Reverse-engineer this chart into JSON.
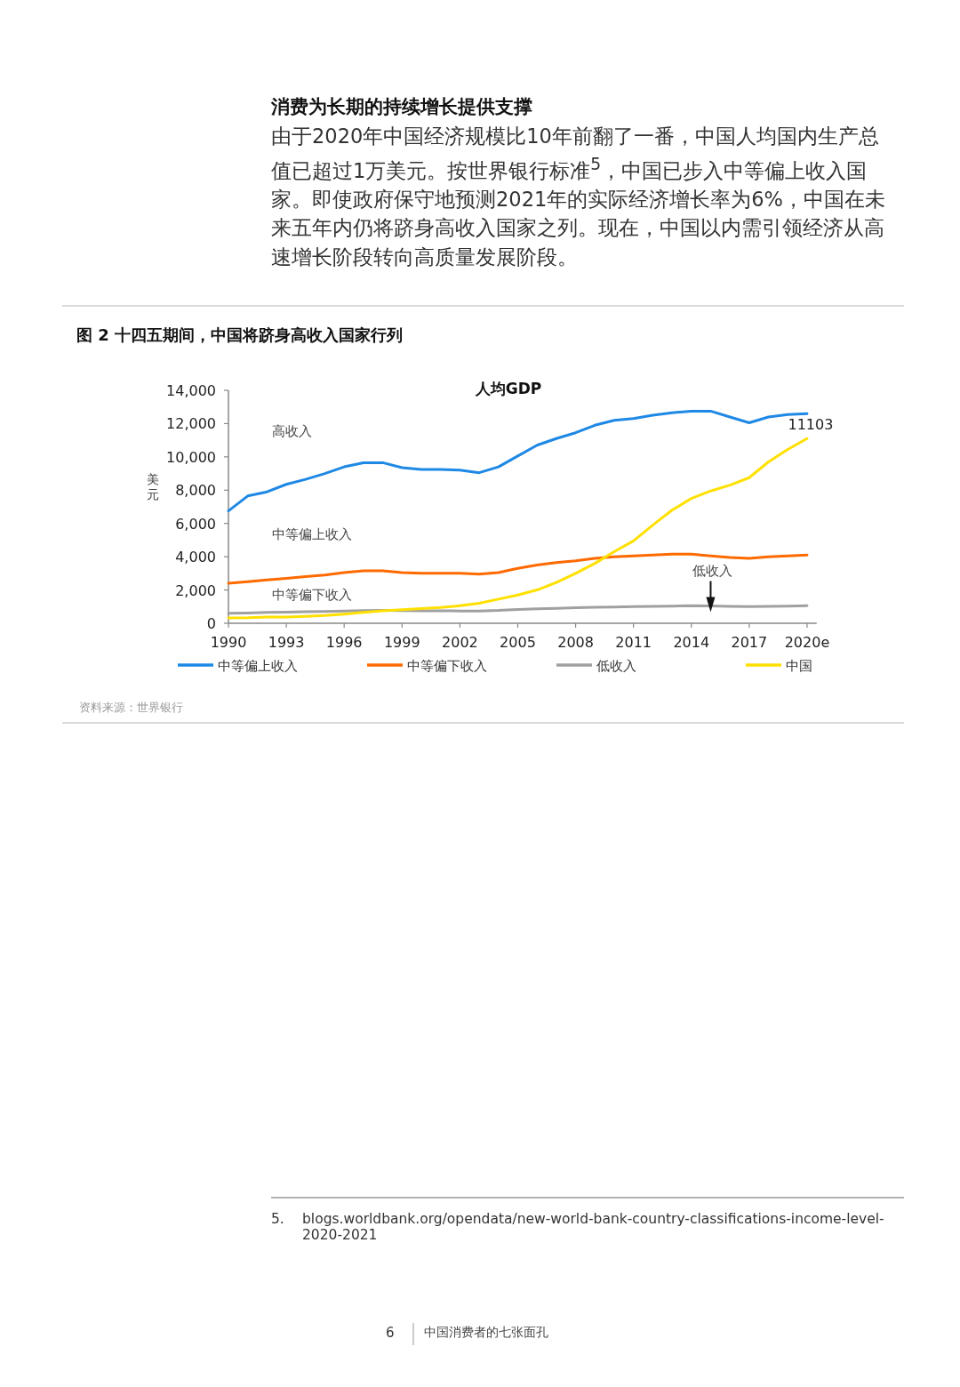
{
  "chart_data": {
    "type": "line",
    "title": "图 2  十四五期间，中国将跻身高收入国家行列",
    "subtitle": "人均GDP",
    "ylabel": "美元",
    "x": [
      1990,
      1991,
      1992,
      1993,
      1994,
      1995,
      1996,
      1997,
      1998,
      1999,
      2000,
      2001,
      2002,
      2003,
      2004,
      2005,
      2006,
      2007,
      2008,
      2009,
      2010,
      2011,
      2012,
      2013,
      2014,
      2015,
      2016,
      2017,
      2018,
      2019,
      2020
    ],
    "xlim": [
      1990,
      2020.5
    ],
    "xticks": [
      1990,
      1993,
      1996,
      1999,
      2002,
      2005,
      2008,
      2011,
      2014,
      2017,
      {
        "value": 2020,
        "label": "2020e"
      }
    ],
    "ylim": [
      0,
      14000
    ],
    "yticks": [
      {
        "value": 0,
        "label": "0"
      },
      {
        "value": 2000,
        "label": "2,000"
      },
      {
        "value": 4000,
        "label": "4,000"
      },
      {
        "value": 6000,
        "label": "6,000"
      },
      {
        "value": 8000,
        "label": "8,000"
      },
      {
        "value": 10000,
        "label": "10,000"
      },
      {
        "value": 12000,
        "label": "12,000"
      },
      {
        "value": 14000,
        "label": "14,000"
      }
    ],
    "legend": "bottom",
    "series": [
      {
        "name": "中等偏上收入",
        "color": "#1e88e5",
        "values": [
          6750,
          7650,
          7900,
          8350,
          8650,
          9000,
          9400,
          9650,
          9650,
          9350,
          9250,
          9250,
          9200,
          9050,
          9400,
          10050,
          10700,
          11100,
          11450,
          11900,
          12200,
          12300,
          12500,
          12650,
          12750,
          12750,
          12400,
          12050,
          12400,
          12550,
          12600
        ]
      },
      {
        "name": "中等偏下收入",
        "color": "#ff6a00",
        "values": [
          2400,
          2500,
          2600,
          2700,
          2800,
          2900,
          3050,
          3150,
          3150,
          3050,
          3000,
          3000,
          3000,
          2950,
          3050,
          3300,
          3500,
          3650,
          3750,
          3900,
          4000,
          4050,
          4100,
          4150,
          4150,
          4050,
          3950,
          3900,
          4000,
          4050,
          4100
        ]
      },
      {
        "name": "低收入",
        "color": "#a0a0a0",
        "values": [
          600,
          620,
          650,
          670,
          690,
          710,
          730,
          760,
          770,
          760,
          750,
          750,
          740,
          740,
          770,
          830,
          870,
          900,
          930,
          960,
          980,
          1000,
          1010,
          1030,
          1050,
          1040,
          1020,
          1000,
          1010,
          1030,
          1050
        ]
      },
      {
        "name": "中国",
        "color": "#ffe000",
        "values": [
          320,
          330,
          370,
          380,
          420,
          470,
          550,
          650,
          750,
          820,
          880,
          950,
          1050,
          1200,
          1450,
          1700,
          2000,
          2450,
          3000,
          3600,
          4300,
          4950,
          5900,
          6800,
          7500,
          7950,
          8300,
          8750,
          9700,
          10450,
          11103
        ],
        "value_labels": [
          null,
          null,
          null,
          null,
          null,
          null,
          null,
          null,
          null,
          null,
          null,
          null,
          null,
          null,
          null,
          null,
          null,
          null,
          null,
          null,
          null,
          null,
          null,
          null,
          null,
          null,
          null,
          null,
          null,
          null,
          "11103"
        ]
      }
    ],
    "annotations": [
      "消费为长期的持续增长提供支撑",
      "由于2020年中国经济规模比10年前翻了一番，中国人均国内生产总值已超过1万美元。按世界银行标准$^{5}$，中国已步入中等偏上收入国家。即使政府保守地预测2021年的实际经济增长率为6%，中国在未来五年内仍将跻身高收入国家之列。现在，中国以内需引领经济从高速增长阶段转向高质量发展阶段。",
      "资料来源：世界银行",
      "5.",
      "blogs.worldbank.org/opendata/new-world-bank-country-classifications-income-level-2020-2021",
      "6",
      "中国消费者的七张面孔",
      "高收入",
      "中等偏上收入",
      "中等偏下收入",
      {
        "text": "低收入",
        "x": 2015,
        "y": 1040
      }
    ]
  }
}
